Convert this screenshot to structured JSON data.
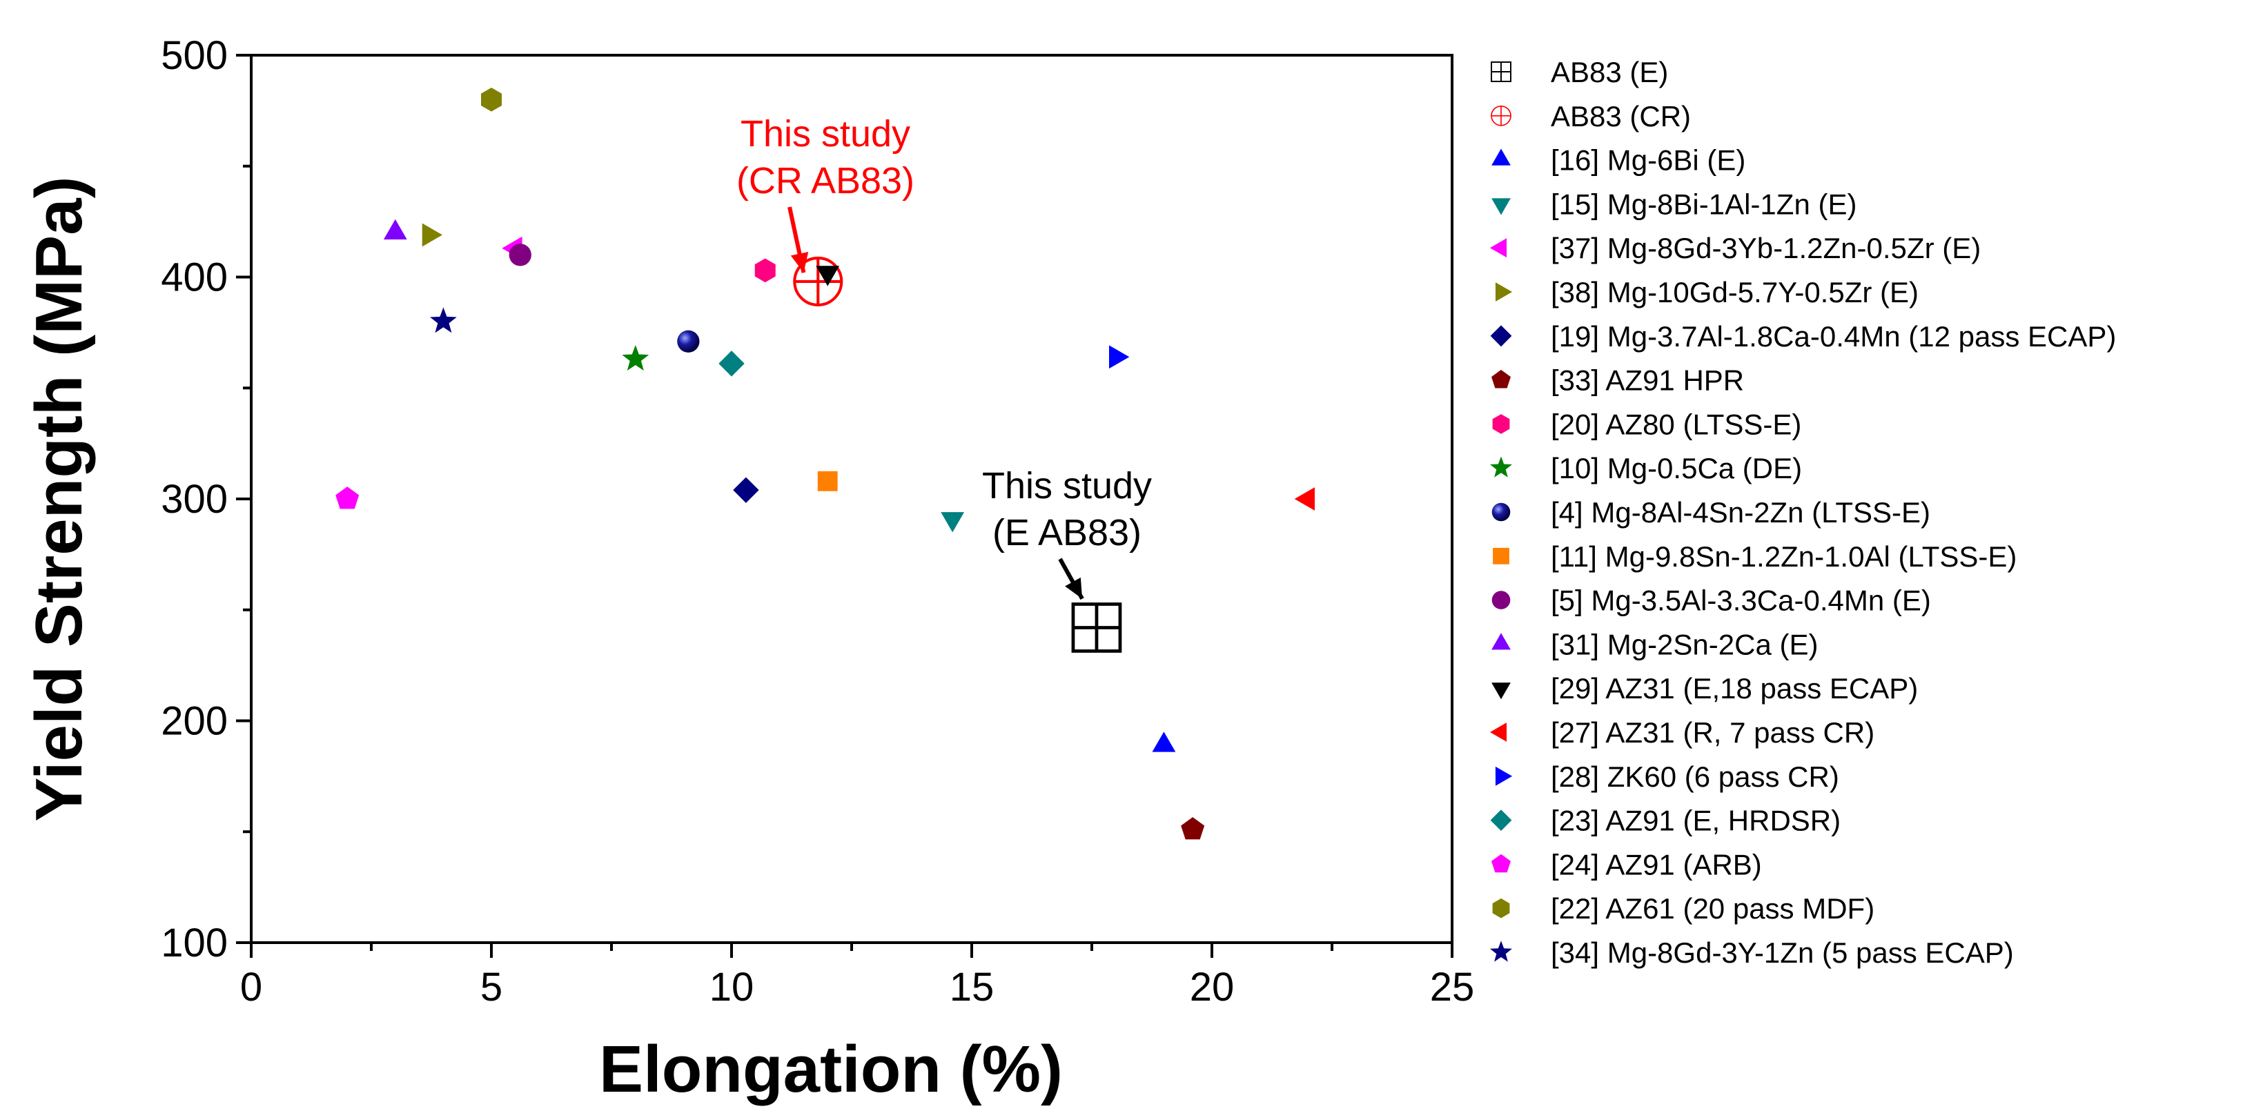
{
  "chart_data": {
    "type": "scatter",
    "xlabel": "Elongation (%)",
    "ylabel": "Yield Strength (MPa)",
    "xlim": [
      0,
      25
    ],
    "ylim": [
      100,
      500
    ],
    "x_ticks": [
      0,
      5,
      10,
      15,
      20,
      25
    ],
    "y_ticks": [
      100,
      200,
      300,
      400,
      500
    ],
    "grid": false,
    "legend_position": "right, outside plot",
    "series": [
      {
        "name": "AB83 (E)",
        "marker": "square-cross",
        "color": "#000000",
        "points": [
          [
            17.6,
            242
          ]
        ]
      },
      {
        "name": "AB83 (CR)",
        "marker": "circle-cross",
        "color": "#ff0000",
        "points": [
          [
            11.8,
            398
          ]
        ]
      },
      {
        "name": "[16] Mg-6Bi (E)",
        "marker": "triangle-up",
        "color": "#0000ff",
        "points": [
          [
            19.0,
            189
          ]
        ]
      },
      {
        "name": "[15] Mg-8Bi-1Al-1Zn (E)",
        "marker": "triangle-down",
        "color": "#008080",
        "points": [
          [
            14.6,
            291
          ]
        ]
      },
      {
        "name": "[37] Mg-8Gd-3Yb-1.2Zn-0.5Zr (E)",
        "marker": "triangle-left",
        "color": "#ff00ff",
        "points": [
          [
            5.5,
            413
          ]
        ]
      },
      {
        "name": "[38] Mg-10Gd-5.7Y-0.5Zr (E)",
        "marker": "triangle-right",
        "color": "#808000",
        "points": [
          [
            3.7,
            419
          ]
        ]
      },
      {
        "name": "[19] Mg-3.7Al-1.8Ca-0.4Mn (12 pass ECAP)",
        "marker": "diamond",
        "color": "#000080",
        "points": [
          [
            10.3,
            304
          ]
        ]
      },
      {
        "name": "[33] AZ91 HPR",
        "marker": "pentagon",
        "color": "#800000",
        "points": [
          [
            19.6,
            151
          ]
        ]
      },
      {
        "name": "[20] AZ80 (LTSS-E)",
        "marker": "hexagon",
        "color": "#ff0080",
        "points": [
          [
            10.7,
            403
          ]
        ]
      },
      {
        "name": "[10] Mg-0.5Ca (DE)",
        "marker": "star",
        "color": "#008000",
        "points": [
          [
            8.0,
            363
          ]
        ]
      },
      {
        "name": "[4] Mg-8Al-4Sn-2Zn  (LTSS-E)",
        "marker": "sphere",
        "color": "#0000a0",
        "points": [
          [
            9.1,
            371
          ]
        ]
      },
      {
        "name": "[11] Mg-9.8Sn-1.2Zn-1.0Al (LTSS-E)",
        "marker": "square",
        "color": "#ff8000",
        "points": [
          [
            12.0,
            308
          ]
        ]
      },
      {
        "name": "[5] Mg-3.5Al-3.3Ca-0.4Mn (E)",
        "marker": "circle",
        "color": "#800080",
        "points": [
          [
            5.6,
            410
          ]
        ]
      },
      {
        "name": "[31] Mg-2Sn-2Ca (E)",
        "marker": "triangle-up",
        "color": "#8000ff",
        "points": [
          [
            3.0,
            420
          ]
        ]
      },
      {
        "name": "[29] AZ31 (E,18 pass ECAP)",
        "marker": "triangle-down",
        "color": "#000000",
        "points": [
          [
            12.0,
            402
          ]
        ]
      },
      {
        "name": "[27] AZ31 (R, 7 pass CR)",
        "marker": "triangle-left",
        "color": "#ff0000",
        "points": [
          [
            22.0,
            300
          ]
        ]
      },
      {
        "name": "[28] ZK60 (6 pass CR)",
        "marker": "triangle-right",
        "color": "#0000ff",
        "points": [
          [
            18.0,
            364
          ]
        ]
      },
      {
        "name": "[23]  AZ91 (E, HRDSR)",
        "marker": "diamond",
        "color": "#008080",
        "points": [
          [
            10.0,
            361
          ]
        ]
      },
      {
        "name": "[24]  AZ91 (ARB)",
        "marker": "pentagon",
        "color": "#ff00ff",
        "points": [
          [
            2.0,
            300
          ]
        ]
      },
      {
        "name": "[22]  AZ61 (20 pass MDF)",
        "marker": "hexagon",
        "color": "#808000",
        "points": [
          [
            5.0,
            480
          ]
        ]
      },
      {
        "name": "[34] Mg-8Gd-3Y-1Zn (5 pass ECAP)",
        "marker": "star",
        "color": "#000080",
        "points": [
          [
            4.0,
            380
          ]
        ]
      }
    ],
    "annotations": [
      {
        "lines": [
          "This study",
          "(CR AB83)"
        ],
        "color": "#ff0000",
        "points_to": [
          11.5,
          402
        ]
      },
      {
        "lines": [
          "This study",
          "(E AB83)"
        ],
        "color": "#000000",
        "points_to": [
          17.3,
          255
        ]
      }
    ]
  }
}
